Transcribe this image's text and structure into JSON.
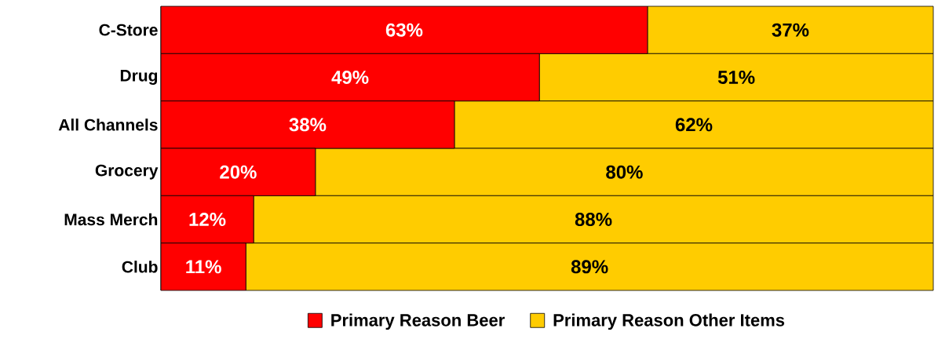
{
  "chart_data": {
    "type": "bar",
    "orientation": "horizontal",
    "stacked": true,
    "legend": "bottom",
    "categories": [
      "C-Store",
      "Drug",
      "All Channels",
      "Grocery",
      "Mass Merch",
      "Club"
    ],
    "series": [
      {
        "name": "Primary Reason Beer",
        "color": "#ff0000",
        "values": [
          63,
          49,
          38,
          20,
          12,
          11
        ],
        "value_labels": [
          "63%",
          "49%",
          "38%",
          "20%",
          "12%",
          "11%"
        ]
      },
      {
        "name": "Primary Reason Other Items",
        "color": "#ffcc00",
        "values": [
          37,
          51,
          62,
          80,
          88,
          89
        ],
        "value_labels": [
          "37%",
          "51%",
          "62%",
          "80%",
          "88%",
          "89%"
        ]
      }
    ]
  }
}
